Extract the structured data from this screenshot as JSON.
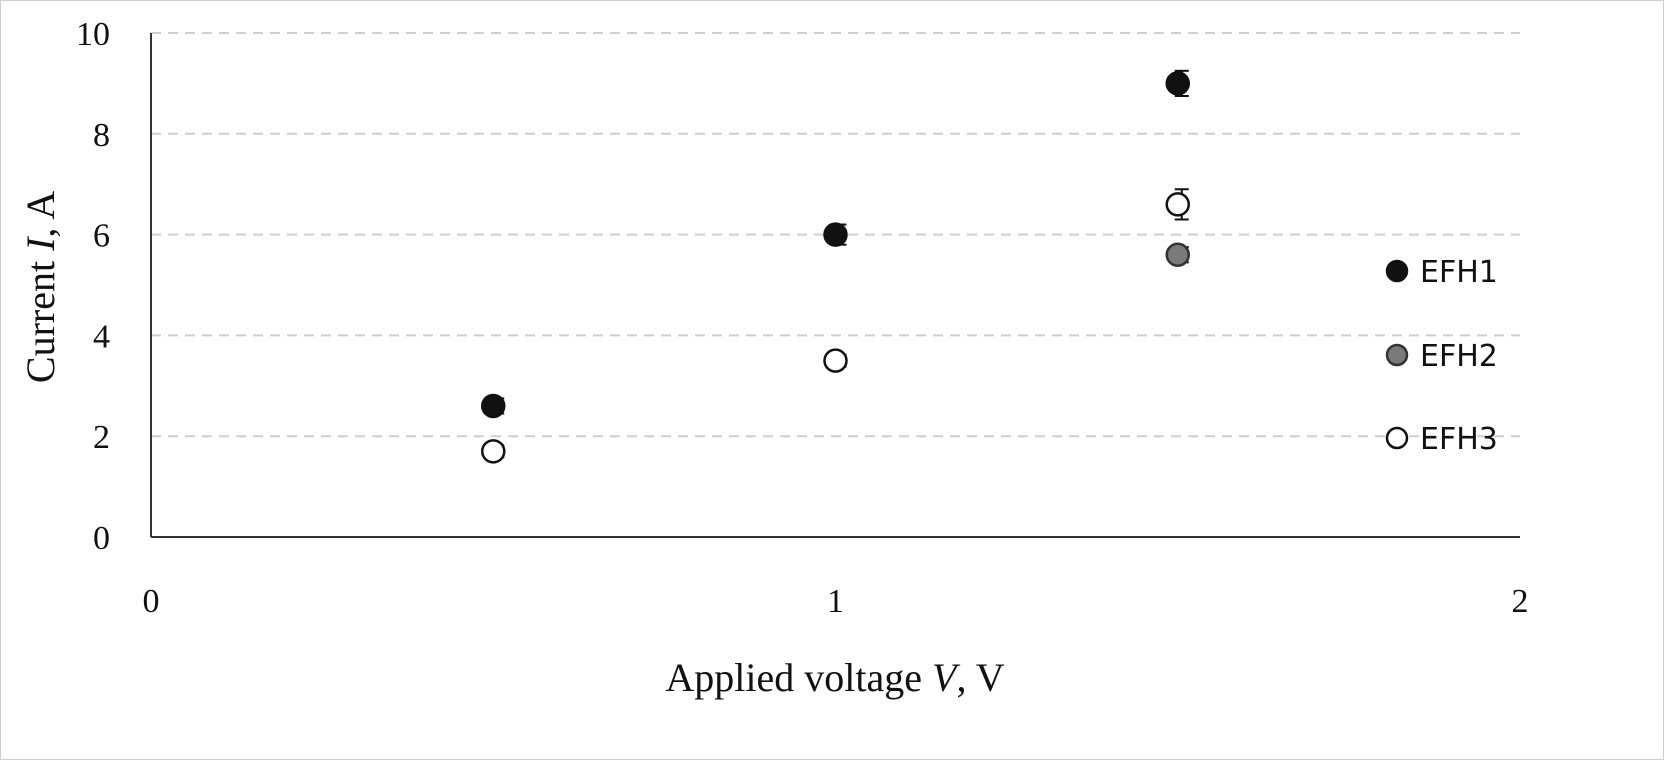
{
  "chart_data": {
    "type": "scatter",
    "xlabel": {
      "pre": "Applied voltage ",
      "var": "V",
      "post": ", V"
    },
    "ylabel": {
      "pre": "Current ",
      "var": "I",
      "post": ", A"
    },
    "xlim": [
      0,
      2
    ],
    "ylim": [
      0,
      10
    ],
    "xticks": [
      "0",
      "1",
      "2"
    ],
    "xtick_values": [
      0,
      1,
      2
    ],
    "yticks": [
      "0",
      "2",
      "4",
      "6",
      "8",
      "10"
    ],
    "ytick_values": [
      0,
      2,
      4,
      6,
      8,
      10
    ],
    "grid": "horizontal dashed",
    "legend_position": "right",
    "series": [
      {
        "name": "EFH1",
        "color": "#111111",
        "fill": "#111111",
        "points": [
          {
            "x": 0.5,
            "y": 2.6,
            "err": 0.15
          },
          {
            "x": 1.0,
            "y": 6.0,
            "err": 0.2
          },
          {
            "x": 1.5,
            "y": 9.0,
            "err": 0.25
          }
        ]
      },
      {
        "name": "EFH2",
        "color": "#333333",
        "fill": "#7a7a7a",
        "points": [
          {
            "x": 1.5,
            "y": 5.6,
            "err": 0.15
          }
        ]
      },
      {
        "name": "EFH3",
        "color": "#111111",
        "fill": "#ffffff",
        "points": [
          {
            "x": 0.5,
            "y": 1.7,
            "err": 0.12
          },
          {
            "x": 1.0,
            "y": 3.5,
            "err": 0.12
          },
          {
            "x": 1.5,
            "y": 6.6,
            "err": 0.3
          }
        ]
      }
    ]
  }
}
